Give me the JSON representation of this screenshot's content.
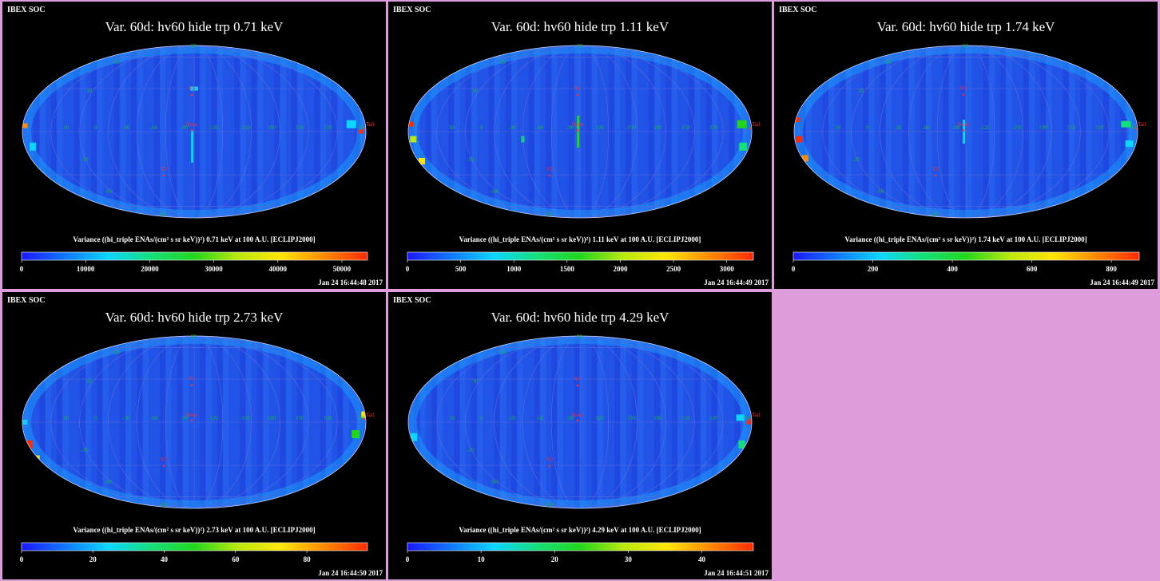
{
  "background_color": "#dd9ddb",
  "panel_label": "IBEX SOC",
  "colormap": [
    "#1b18ff",
    "#1177ff",
    "#0cd6ff",
    "#14e07a",
    "#22d61c",
    "#b9e90e",
    "#ffe600",
    "#ff8a00",
    "#ff2a00"
  ],
  "map_base_color": "#1f4fe6",
  "graticule_color": "#5a6bd8",
  "coordinate_labels": {
    "lat": [
      "60",
      "30",
      "-30",
      "-60"
    ],
    "lon_top": [
      "30",
      "0",
      "-30",
      "-60",
      "-90",
      "-120",
      "-150",
      "180",
      "150",
      "120",
      "90"
    ],
    "poles": [
      "90",
      "-90"
    ]
  },
  "markers": {
    "v1": "V1",
    "v2": "V2",
    "nose": "Nose",
    "tail": "Tail"
  },
  "chart_data": [
    {
      "type": "heatmap",
      "title": "Var. 60d: hv60 hide trp 0.71 keV",
      "colorbar_label": "Variance ((hi_triple ENAs/(cm² s sr keV))²) 0.71 keV at 100 A.U. [ECLIPJ2000]",
      "ticks": [
        "0",
        "10000",
        "20000",
        "30000",
        "40000",
        "50000"
      ],
      "tick_values": [
        0,
        10000,
        20000,
        30000,
        40000,
        50000
      ],
      "range": [
        0,
        54000
      ],
      "timestamp": "Jan 24 16:44:48 2017"
    },
    {
      "type": "heatmap",
      "title": "Var. 60d: hv60 hide trp 1.11 keV",
      "colorbar_label": "Variance ((hi_triple ENAs/(cm² s sr keV))²) 1.11 keV at 100 A.U. [ECLIPJ2000]",
      "ticks": [
        "0",
        "500",
        "1000",
        "1500",
        "2000",
        "2500",
        "3000"
      ],
      "tick_values": [
        0,
        500,
        1000,
        1500,
        2000,
        2500,
        3000
      ],
      "range": [
        0,
        3250
      ],
      "timestamp": "Jan 24 16:44:49 2017"
    },
    {
      "type": "heatmap",
      "title": "Var. 60d: hv60 hide trp 1.74 keV",
      "colorbar_label": "Variance ((hi_triple ENAs/(cm² s sr keV))²) 1.74 keV at 100 A.U. [ECLIPJ2000]",
      "ticks": [
        "0",
        "200",
        "400",
        "600",
        "800"
      ],
      "tick_values": [
        0,
        200,
        400,
        600,
        800
      ],
      "range": [
        0,
        870
      ],
      "timestamp": "Jan 24 16:44:49 2017"
    },
    {
      "type": "heatmap",
      "title": "Var. 60d: hv60 hide trp 2.73 keV",
      "colorbar_label": "Variance ((hi_triple ENAs/(cm² s sr keV))²) 2.73 keV at 100 A.U. [ECLIPJ2000]",
      "ticks": [
        "0",
        "20",
        "40",
        "60",
        "80"
      ],
      "tick_values": [
        0,
        20,
        40,
        60,
        80
      ],
      "range": [
        0,
        97
      ],
      "timestamp": "Jan 24 16:44:50 2017"
    },
    {
      "type": "heatmap",
      "title": "Var. 60d: hv60 hide trp 4.29 keV",
      "colorbar_label": "Variance ((hi_triple ENAs/(cm² s sr keV))²) 4.29 keV at 100 A.U. [ECLIPJ2000]",
      "ticks": [
        "0",
        "10",
        "20",
        "30",
        "40"
      ],
      "tick_values": [
        0,
        10,
        20,
        30,
        40
      ],
      "range": [
        0,
        47
      ],
      "timestamp": "Jan 24 16:44:51 2017"
    }
  ]
}
